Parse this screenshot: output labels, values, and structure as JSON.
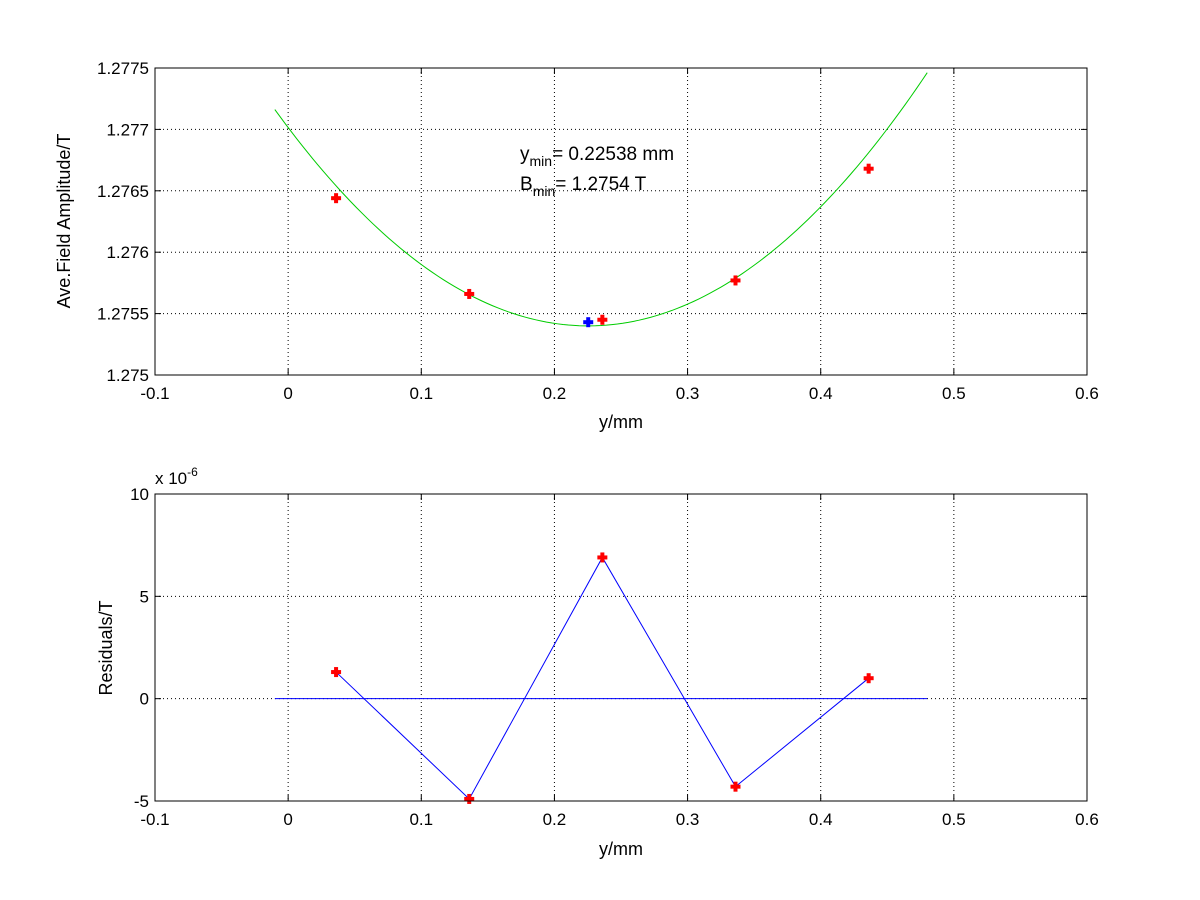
{
  "chart_data": [
    {
      "type": "scatter",
      "xlabel": "y/mm",
      "ylabel": "Ave.Field Amplitude/T",
      "xlim": [
        -0.1,
        0.6
      ],
      "ylim": [
        1.275,
        1.2775
      ],
      "xticks": [
        "-0.1",
        "0",
        "0.1",
        "0.2",
        "0.3",
        "0.4",
        "0.5",
        "0.6"
      ],
      "yticks": [
        "1.275",
        "1.2755",
        "1.276",
        "1.2765",
        "1.277",
        "1.2775"
      ],
      "grid": true,
      "series": [
        {
          "type": "scatter",
          "marker": "plus",
          "color": "#ff0000",
          "x": [
            0.036,
            0.136,
            0.236,
            0.336,
            0.436
          ],
          "y": [
            1.27644,
            1.27566,
            1.27545,
            1.27577,
            1.27668
          ]
        },
        {
          "type": "line",
          "color": "#00cc00",
          "fit": {
            "x0": 0.22538,
            "y0": 1.2754,
            "a": 0.0318
          },
          "x_range": [
            -0.01,
            0.48
          ]
        },
        {
          "type": "scatter",
          "marker": "plus",
          "color": "#0000ff",
          "x": [
            0.22538
          ],
          "y": [
            1.27543
          ]
        }
      ],
      "annotations": {
        "ymin_main": "y",
        "ymin_sub": "min",
        "ymin_rest": "= 0.22538 mm",
        "bmin_main": "B",
        "bmin_sub": "min",
        "bmin_rest": "= 1.2754 T"
      }
    },
    {
      "type": "line",
      "xlabel": "y/mm",
      "ylabel": "Residuals/T",
      "xlim": [
        -0.1,
        0.6
      ],
      "ylim": [
        -5,
        10
      ],
      "y_exponent": {
        "base": "x 10",
        "exp": "-6"
      },
      "xticks": [
        "-0.1",
        "0",
        "0.1",
        "0.2",
        "0.3",
        "0.4",
        "0.5",
        "0.6"
      ],
      "yticks": [
        "-5",
        "0",
        "5",
        "10"
      ],
      "grid": true,
      "series": [
        {
          "type": "line",
          "marker": "plus",
          "line_color": "#0000ff",
          "marker_color": "#ff0000",
          "x": [
            0.036,
            0.136,
            0.236,
            0.336,
            0.436
          ],
          "y": [
            1.3,
            -4.9,
            6.9,
            -4.3,
            1.0
          ]
        },
        {
          "type": "line",
          "color": "#0000ff",
          "x": [
            -0.01,
            0.48
          ],
          "y": [
            0,
            0
          ]
        }
      ]
    }
  ]
}
